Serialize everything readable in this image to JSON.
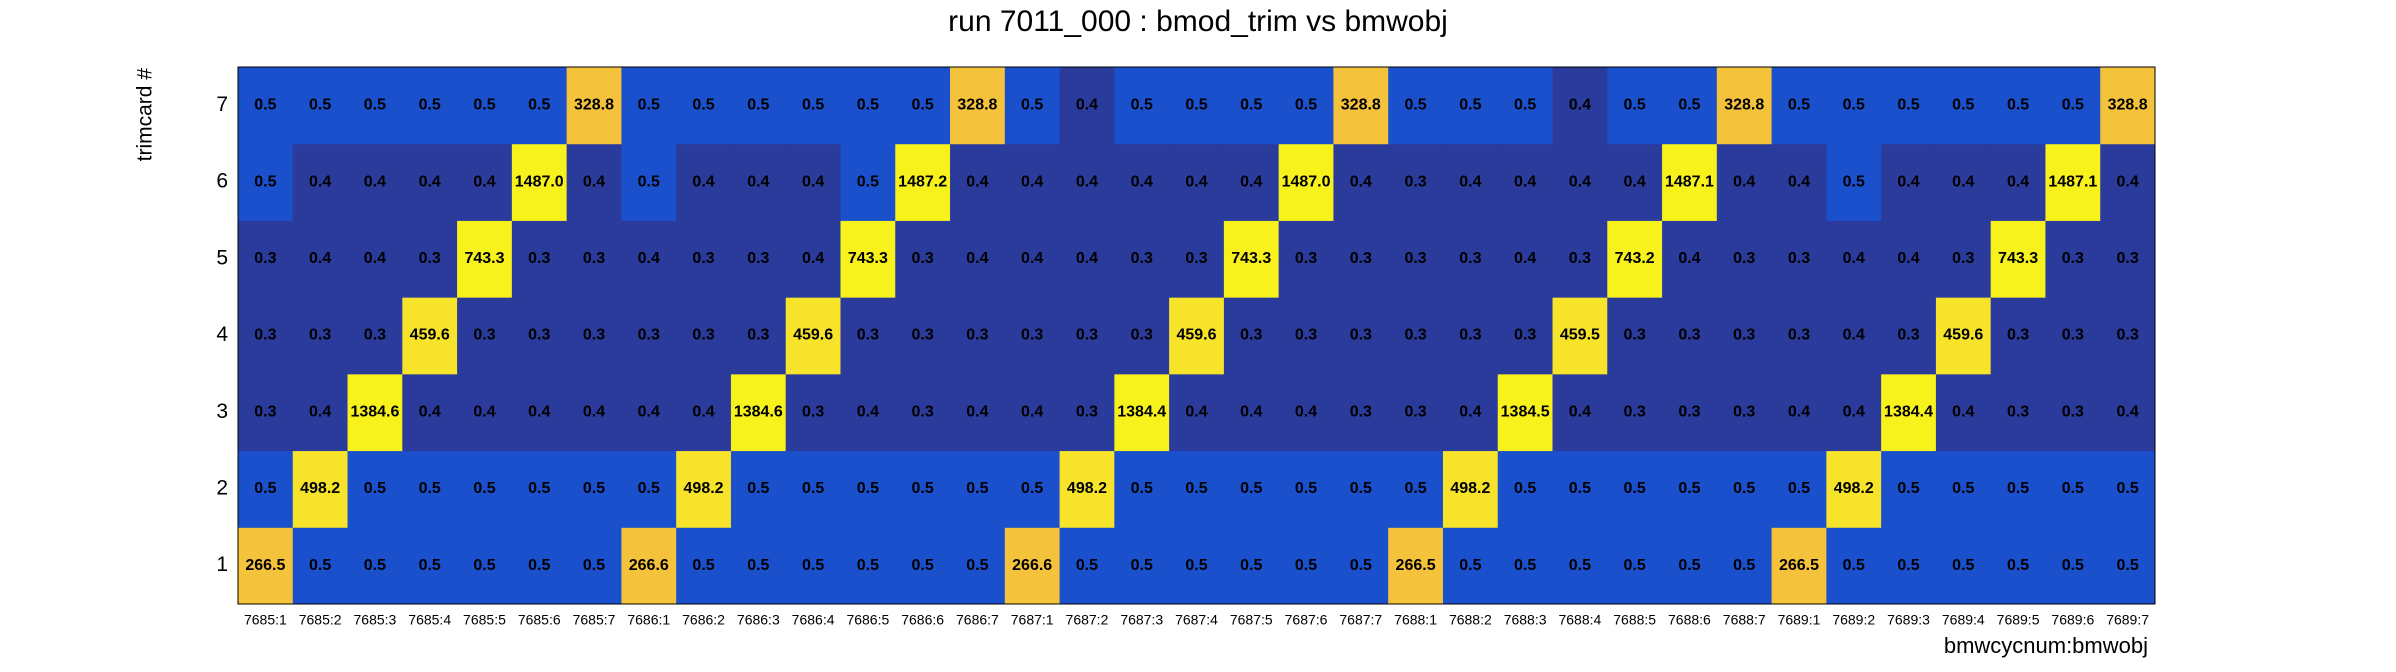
{
  "chart_data": {
    "type": "heatmap",
    "title": "run 7011_000 : bmod_trim vs bmwobj",
    "x_label": "bmwcycnum:bmwobj",
    "y_label": "trimcard #",
    "categories": [
      "7685:1",
      "7685:2",
      "7685:3",
      "7685:4",
      "7685:5",
      "7685:6",
      "7685:7",
      "7686:1",
      "7686:2",
      "7686:3",
      "7686:4",
      "7686:5",
      "7686:6",
      "7686:7",
      "7687:1",
      "7687:2",
      "7687:3",
      "7687:4",
      "7687:5",
      "7687:6",
      "7687:7",
      "7688:1",
      "7688:2",
      "7688:3",
      "7688:4",
      "7688:5",
      "7688:6",
      "7688:7",
      "7689:1",
      "7689:2",
      "7689:3",
      "7689:4",
      "7689:5",
      "7689:6",
      "7689:7"
    ],
    "y_categories": [
      "1",
      "2",
      "3",
      "4",
      "5",
      "6",
      "7"
    ],
    "values": [
      [
        266.5,
        0.5,
        0.5,
        0.5,
        0.5,
        0.5,
        0.5,
        266.6,
        0.5,
        0.5,
        0.5,
        0.5,
        0.5,
        0.5,
        266.6,
        0.5,
        0.5,
        0.5,
        0.5,
        0.5,
        0.5,
        266.5,
        0.5,
        0.5,
        0.5,
        0.5,
        0.5,
        0.5,
        266.5,
        0.5,
        0.5,
        0.5,
        0.5,
        0.5,
        0.5
      ],
      [
        0.5,
        498.2,
        0.5,
        0.5,
        0.5,
        0.5,
        0.5,
        0.5,
        498.2,
        0.5,
        0.5,
        0.5,
        0.5,
        0.5,
        0.5,
        498.2,
        0.5,
        0.5,
        0.5,
        0.5,
        0.5,
        0.5,
        498.2,
        0.5,
        0.5,
        0.5,
        0.5,
        0.5,
        0.5,
        498.2,
        0.5,
        0.5,
        0.5,
        0.5,
        0.5
      ],
      [
        0.3,
        0.4,
        1384.6,
        0.4,
        0.4,
        0.4,
        0.4,
        0.4,
        0.4,
        1384.6,
        0.3,
        0.4,
        0.3,
        0.4,
        0.4,
        0.3,
        1384.4,
        0.4,
        0.4,
        0.4,
        0.3,
        0.3,
        0.4,
        1384.5,
        0.4,
        0.3,
        0.3,
        0.3,
        0.4,
        0.4,
        1384.4,
        0.4,
        0.3,
        0.3,
        0.4
      ],
      [
        0.3,
        0.3,
        0.3,
        459.6,
        0.3,
        0.3,
        0.3,
        0.3,
        0.3,
        0.3,
        459.6,
        0.3,
        0.3,
        0.3,
        0.3,
        0.3,
        0.3,
        459.6,
        0.3,
        0.3,
        0.3,
        0.3,
        0.3,
        0.3,
        459.5,
        0.3,
        0.3,
        0.3,
        0.3,
        0.4,
        0.3,
        459.6,
        0.3,
        0.3,
        0.3
      ],
      [
        0.3,
        0.4,
        0.4,
        0.3,
        743.3,
        0.3,
        0.3,
        0.4,
        0.3,
        0.3,
        0.4,
        743.3,
        0.3,
        0.4,
        0.4,
        0.4,
        0.3,
        0.3,
        743.3,
        0.3,
        0.3,
        0.3,
        0.3,
        0.4,
        0.3,
        743.2,
        0.4,
        0.3,
        0.3,
        0.4,
        0.4,
        0.3,
        743.3,
        0.3,
        0.3
      ],
      [
        0.5,
        0.4,
        0.4,
        0.4,
        0.4,
        1487,
        0.4,
        0.5,
        0.4,
        0.4,
        0.4,
        0.5,
        1487.2,
        0.4,
        0.4,
        0.4,
        0.4,
        0.4,
        0.4,
        1487,
        0.4,
        0.3,
        0.4,
        0.4,
        0.4,
        0.4,
        1487.1,
        0.4,
        0.4,
        0.5,
        0.4,
        0.4,
        0.4,
        1487.1,
        0.4
      ],
      [
        0.5,
        0.5,
        0.5,
        0.5,
        0.5,
        0.5,
        328.8,
        0.5,
        0.5,
        0.5,
        0.5,
        0.5,
        0.5,
        328.8,
        0.5,
        0.4,
        0.5,
        0.5,
        0.5,
        0.5,
        328.8,
        0.5,
        0.5,
        0.5,
        0.4,
        0.5,
        0.5,
        328.8,
        0.5,
        0.5,
        0.5,
        0.5,
        0.5,
        0.5,
        328.8
      ]
    ],
    "value_labels": [
      [
        "266.5",
        "0.5",
        "0.5",
        "0.5",
        "0.5",
        "0.5",
        "0.5",
        "266.6",
        "0.5",
        "0.5",
        "0.5",
        "0.5",
        "0.5",
        "0.5",
        "266.6",
        "0.5",
        "0.5",
        "0.5",
        "0.5",
        "0.5",
        "0.5",
        "266.5",
        "0.5",
        "0.5",
        "0.5",
        "0.5",
        "0.5",
        "0.5",
        "266.5",
        "0.5",
        "0.5",
        "0.5",
        "0.5",
        "0.5",
        "0.5"
      ],
      [
        "0.5",
        "498.2",
        "0.5",
        "0.5",
        "0.5",
        "0.5",
        "0.5",
        "0.5",
        "498.2",
        "0.5",
        "0.5",
        "0.5",
        "0.5",
        "0.5",
        "0.5",
        "498.2",
        "0.5",
        "0.5",
        "0.5",
        "0.5",
        "0.5",
        "0.5",
        "498.2",
        "0.5",
        "0.5",
        "0.5",
        "0.5",
        "0.5",
        "0.5",
        "498.2",
        "0.5",
        "0.5",
        "0.5",
        "0.5",
        "0.5"
      ],
      [
        "0.3",
        "0.4",
        "1384.6",
        "0.4",
        "0.4",
        "0.4",
        "0.4",
        "0.4",
        "0.4",
        "1384.6",
        "0.3",
        "0.4",
        "0.3",
        "0.4",
        "0.4",
        "0.3",
        "1384.4",
        "0.4",
        "0.4",
        "0.4",
        "0.3",
        "0.3",
        "0.4",
        "1384.5",
        "0.4",
        "0.3",
        "0.3",
        "0.3",
        "0.4",
        "0.4",
        "1384.4",
        "0.4",
        "0.3",
        "0.3",
        "0.4"
      ],
      [
        "0.3",
        "0.3",
        "0.3",
        "459.6",
        "0.3",
        "0.3",
        "0.3",
        "0.3",
        "0.3",
        "0.3",
        "459.6",
        "0.3",
        "0.3",
        "0.3",
        "0.3",
        "0.3",
        "0.3",
        "459.6",
        "0.3",
        "0.3",
        "0.3",
        "0.3",
        "0.3",
        "0.3",
        "459.5",
        "0.3",
        "0.3",
        "0.3",
        "0.3",
        "0.4",
        "0.3",
        "459.6",
        "0.3",
        "0.3",
        "0.3"
      ],
      [
        "0.3",
        "0.4",
        "0.4",
        "0.3",
        "743.3",
        "0.3",
        "0.3",
        "0.4",
        "0.3",
        "0.3",
        "0.4",
        "743.3",
        "0.3",
        "0.4",
        "0.4",
        "0.4",
        "0.3",
        "0.3",
        "743.3",
        "0.3",
        "0.3",
        "0.3",
        "0.3",
        "0.4",
        "0.3",
        "743.2",
        "0.4",
        "0.3",
        "0.3",
        "0.4",
        "0.4",
        "0.3",
        "743.3",
        "0.3",
        "0.3"
      ],
      [
        "0.5",
        "0.4",
        "0.4",
        "0.4",
        "0.4",
        "1487.0",
        "0.4",
        "0.5",
        "0.4",
        "0.4",
        "0.4",
        "0.5",
        "1487.2",
        "0.4",
        "0.4",
        "0.4",
        "0.4",
        "0.4",
        "0.4",
        "1487.0",
        "0.4",
        "0.3",
        "0.4",
        "0.4",
        "0.4",
        "0.4",
        "1487.1",
        "0.4",
        "0.4",
        "0.5",
        "0.4",
        "0.4",
        "0.4",
        "1487.1",
        "0.4"
      ],
      [
        "0.5",
        "0.5",
        "0.5",
        "0.5",
        "0.5",
        "0.5",
        "328.8",
        "0.5",
        "0.5",
        "0.5",
        "0.5",
        "0.5",
        "0.5",
        "328.8",
        "0.5",
        "0.4",
        "0.5",
        "0.5",
        "0.5",
        "0.5",
        "328.8",
        "0.5",
        "0.5",
        "0.5",
        "0.4",
        "0.5",
        "0.5",
        "328.8",
        "0.5",
        "0.5",
        "0.5",
        "0.5",
        "0.5",
        "0.5",
        "328.8"
      ]
    ],
    "color_scale": [
      {
        "min": 0,
        "color": "#2a3b9c"
      },
      {
        "min": 0.45,
        "color": "#1a50cc"
      },
      {
        "min": 250,
        "color": "#f5c33b"
      },
      {
        "min": 450,
        "color": "#f6e32a"
      },
      {
        "min": 700,
        "color": "#f8f21c"
      }
    ]
  }
}
